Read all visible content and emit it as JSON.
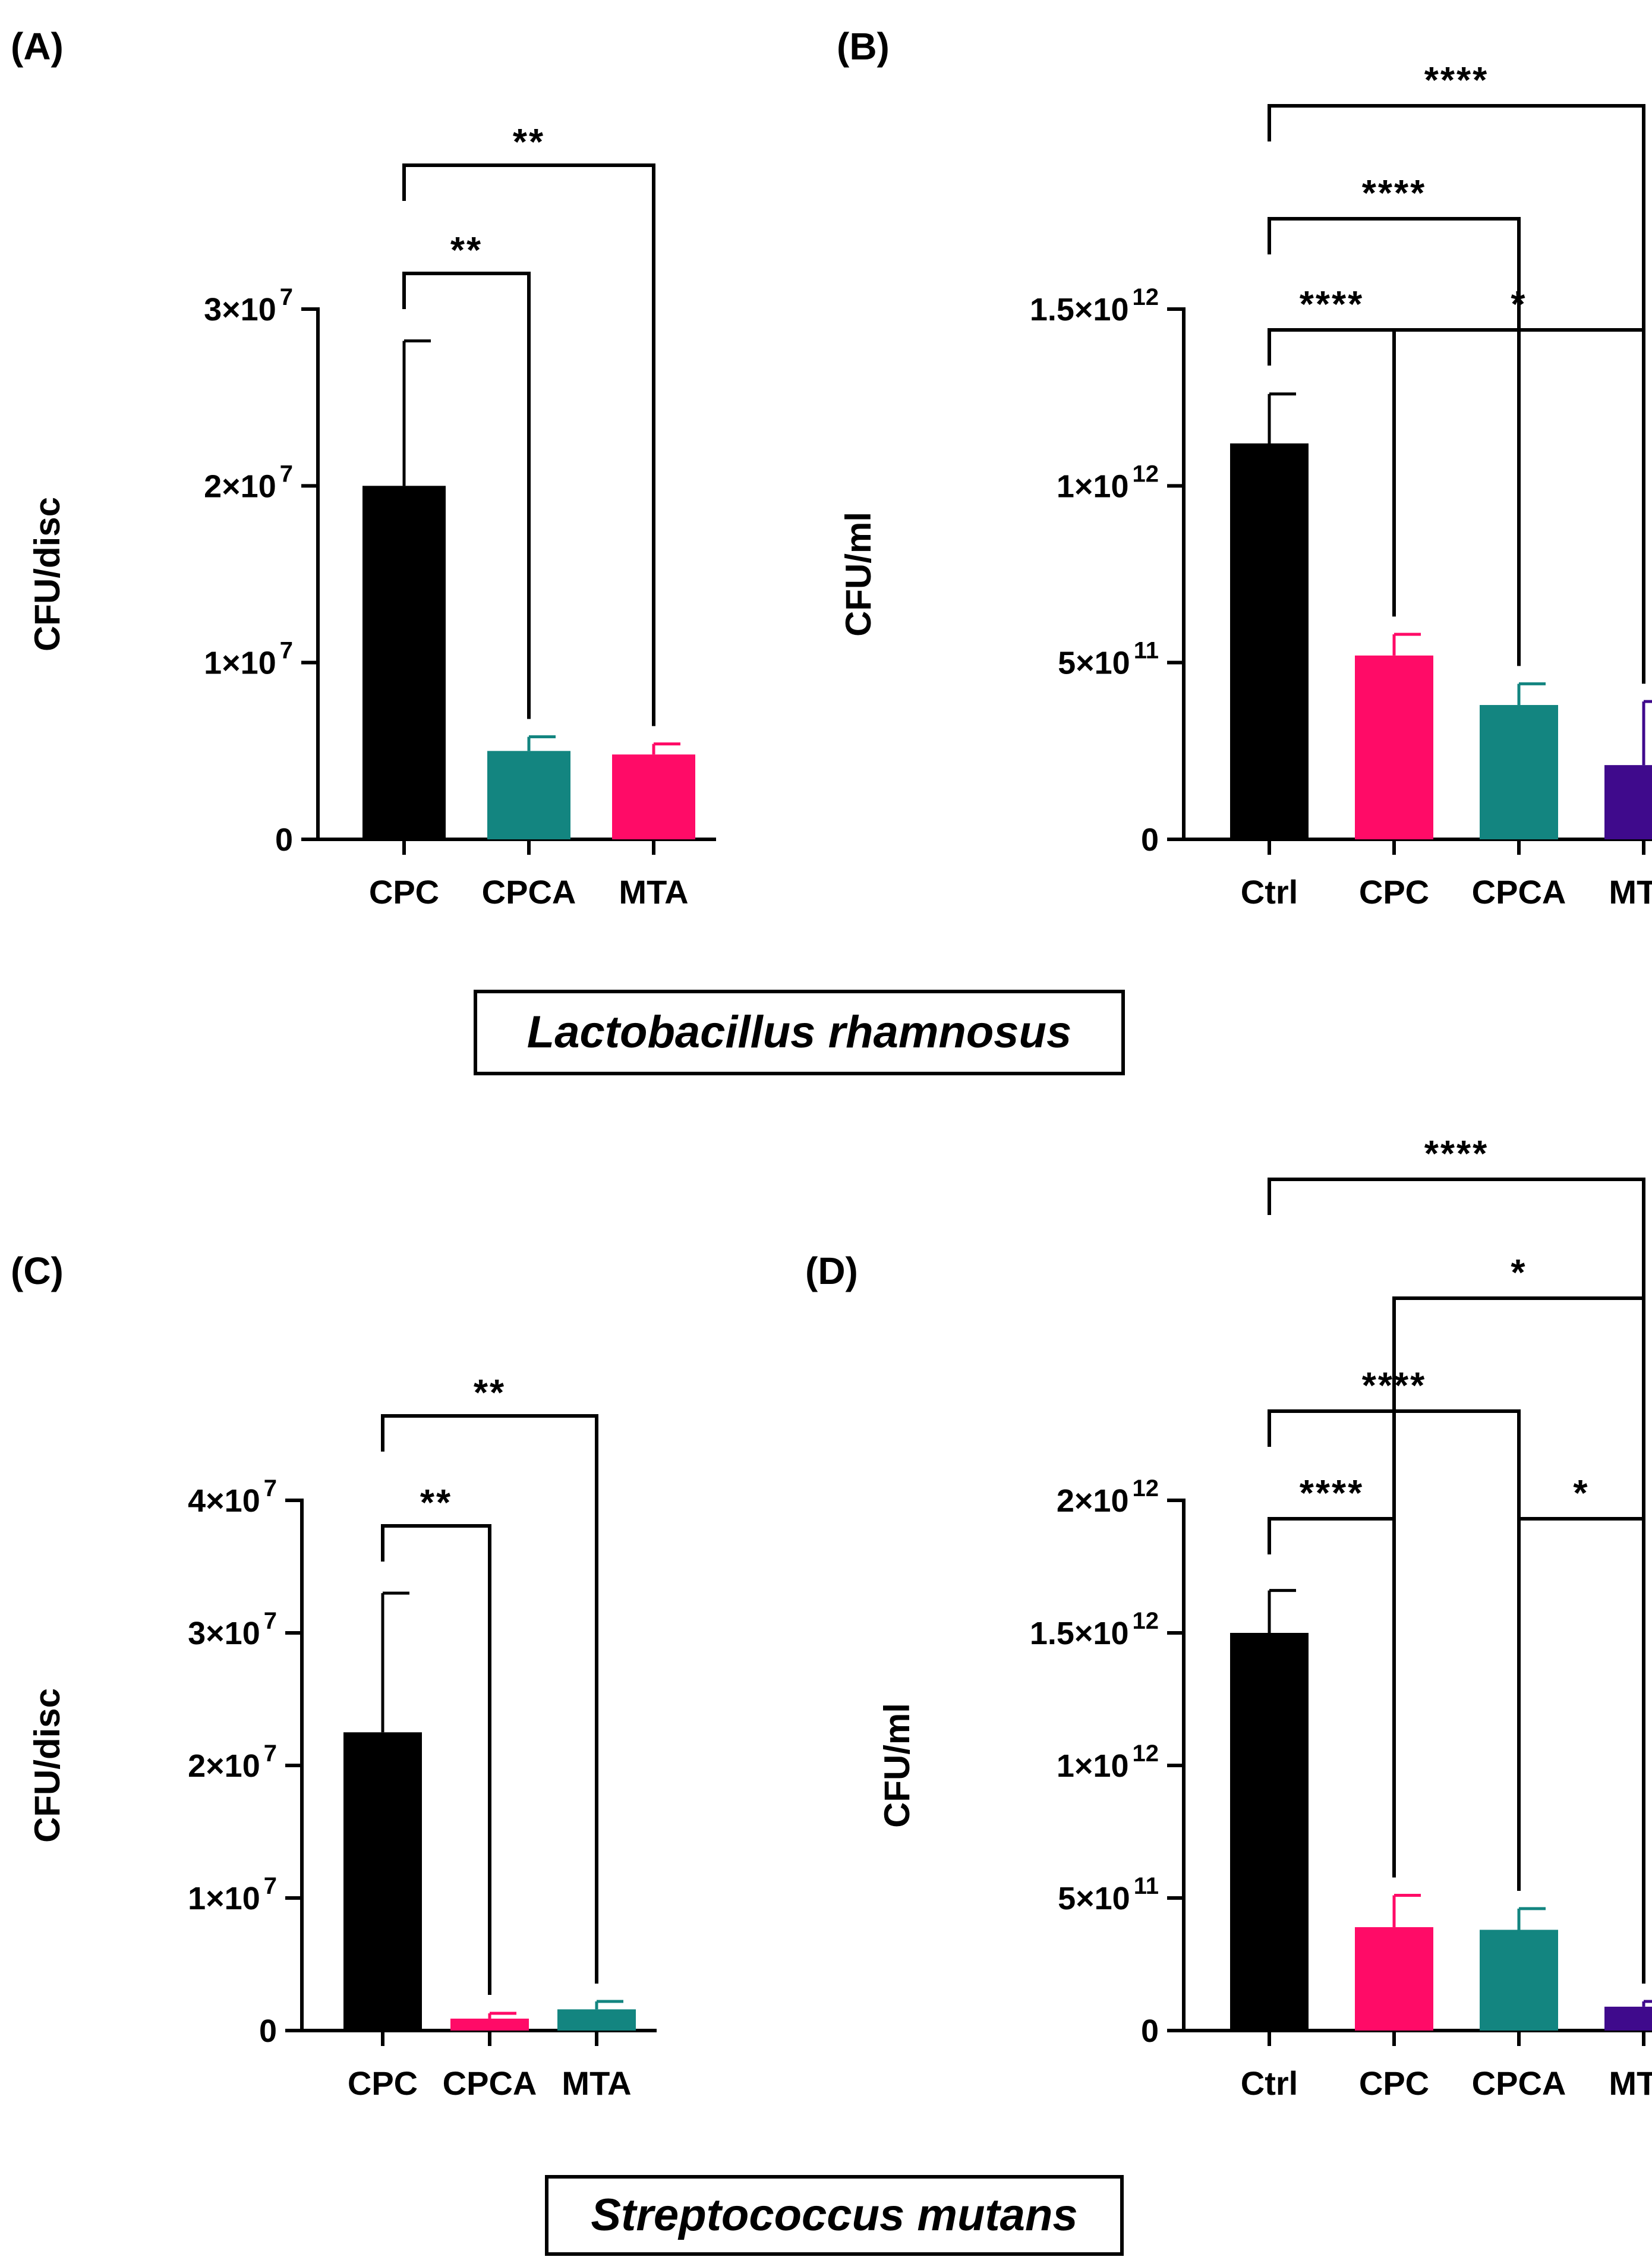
{
  "species": {
    "top": "Lactobacillus rhamnosus",
    "bottom": "Streptococcus mutans"
  },
  "chart_data": [
    {
      "id": "A",
      "type": "bar",
      "panel_label": "(A)",
      "ylabel": "CFU/disc",
      "categories": [
        "CPC",
        "CPCA",
        "MTA"
      ],
      "values": [
        20000000,
        5000000,
        4800000
      ],
      "errors": [
        8200000,
        800000,
        600000
      ],
      "colors": [
        "#000000",
        "#138580",
        "#ff0b67"
      ],
      "ylim": [
        0,
        30000000
      ],
      "yticks": [
        0,
        10000000,
        20000000,
        30000000
      ],
      "ytick_labels": [
        {
          "base": "0",
          "exp": ""
        },
        {
          "base": "1×10",
          "exp": "7"
        },
        {
          "base": "2×10",
          "exp": "7"
        },
        {
          "base": "3×10",
          "exp": "7"
        }
      ],
      "comparisons": [
        {
          "from": 0,
          "to": 1,
          "label": "**"
        },
        {
          "from": 0,
          "to": 2,
          "label": "**"
        }
      ]
    },
    {
      "id": "B",
      "type": "bar",
      "panel_label": "(B)",
      "ylabel": "CFU/ml",
      "categories": [
        "Ctrl",
        "CPC",
        "CPCA",
        "MTA"
      ],
      "values": [
        1120000000000,
        520000000000,
        380000000000,
        210000000000
      ],
      "errors": [
        140000000000,
        60000000000,
        60000000000,
        180000000000
      ],
      "colors": [
        "#000000",
        "#ff0b67",
        "#138580",
        "#3f0a8c"
      ],
      "ylim": [
        0,
        1500000000000
      ],
      "yticks": [
        0,
        500000000000,
        1000000000000,
        1500000000000
      ],
      "ytick_labels": [
        {
          "base": "0",
          "exp": ""
        },
        {
          "base": "5×10",
          "exp": "11"
        },
        {
          "base": "1×10",
          "exp": "12"
        },
        {
          "base": "1.5×10",
          "exp": "12"
        }
      ],
      "comparisons": [
        {
          "from": 0,
          "to": 1,
          "label": "****"
        },
        {
          "from": 1,
          "to": 3,
          "label": "*"
        },
        {
          "from": 0,
          "to": 2,
          "label": "****"
        },
        {
          "from": 0,
          "to": 3,
          "label": "****"
        }
      ]
    },
    {
      "id": "C",
      "type": "bar",
      "panel_label": "(C)",
      "ylabel": "CFU/disc",
      "categories": [
        "CPC",
        "CPCA",
        "MTA"
      ],
      "values": [
        22500000,
        900000,
        1600000
      ],
      "errors": [
        10500000,
        400000,
        600000
      ],
      "colors": [
        "#000000",
        "#ff0b67",
        "#138580"
      ],
      "ylim": [
        0,
        40000000
      ],
      "yticks": [
        0,
        10000000,
        20000000,
        30000000,
        40000000
      ],
      "ytick_labels": [
        {
          "base": "0",
          "exp": ""
        },
        {
          "base": "1×10",
          "exp": "7"
        },
        {
          "base": "2×10",
          "exp": "7"
        },
        {
          "base": "3×10",
          "exp": "7"
        },
        {
          "base": "4×10",
          "exp": "7"
        }
      ],
      "comparisons": [
        {
          "from": 0,
          "to": 1,
          "label": "**"
        },
        {
          "from": 0,
          "to": 2,
          "label": "**"
        }
      ]
    },
    {
      "id": "D",
      "type": "bar",
      "panel_label": "(D)",
      "ylabel": "CFU/ml",
      "categories": [
        "Ctrl",
        "CPC",
        "CPCA",
        "MTA"
      ],
      "values": [
        1500000000000,
        390000000000,
        380000000000,
        90000000000
      ],
      "errors": [
        160000000000,
        120000000000,
        80000000000,
        20000000000
      ],
      "colors": [
        "#000000",
        "#ff0b67",
        "#138580",
        "#3f0a8c"
      ],
      "ylim": [
        0,
        2000000000000
      ],
      "yticks": [
        0,
        500000000000,
        1000000000000,
        1500000000000,
        2000000000000
      ],
      "ytick_labels": [
        {
          "base": "0",
          "exp": ""
        },
        {
          "base": "5×10",
          "exp": "11"
        },
        {
          "base": "1×10",
          "exp": "12"
        },
        {
          "base": "1.5×10",
          "exp": "12"
        },
        {
          "base": "2×10",
          "exp": "12"
        }
      ],
      "comparisons": [
        {
          "from": 0,
          "to": 1,
          "label": "****"
        },
        {
          "from": 2,
          "to": 3,
          "label": "*"
        },
        {
          "from": 0,
          "to": 2,
          "label": "****"
        },
        {
          "from": 1,
          "to": 3,
          "label": "*"
        },
        {
          "from": 0,
          "to": 3,
          "label": "****"
        }
      ]
    }
  ]
}
